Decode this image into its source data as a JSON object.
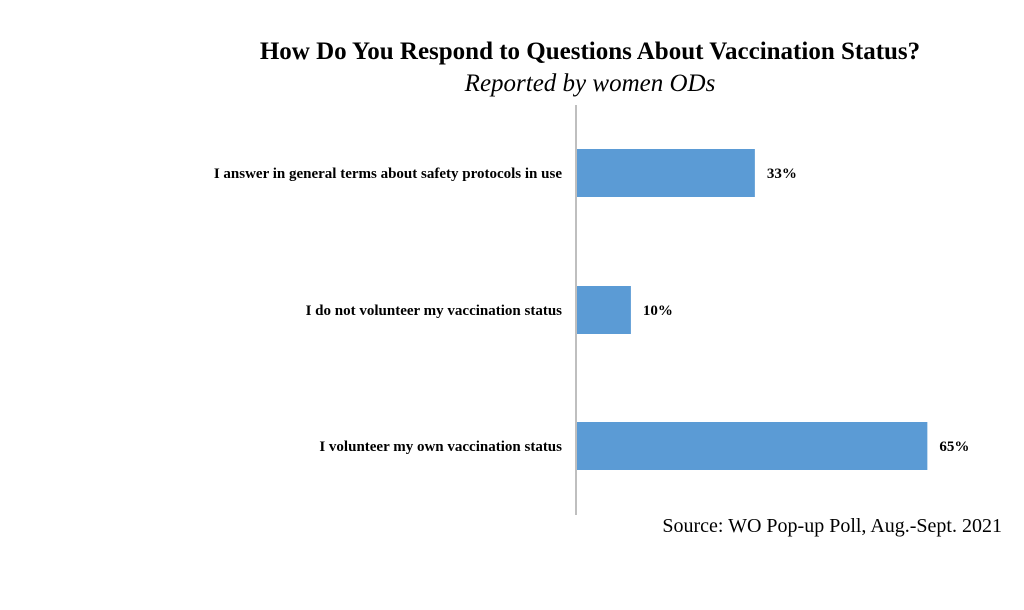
{
  "chart_data": {
    "type": "bar",
    "orientation": "horizontal",
    "title": "How Do You Respond to Questions About Vaccination Status?",
    "subtitle": "Reported by women ODs",
    "categories": [
      "I answer in general terms about safety protocols in use",
      "I do not volunteer my vaccination status",
      "I volunteer my own vaccination status"
    ],
    "values": [
      33,
      10,
      65
    ],
    "value_labels": [
      "33%",
      "10%",
      "65%"
    ],
    "xlim": [
      0,
      100
    ],
    "grid": false,
    "bar_color": "#5b9bd5",
    "axis_color": "#bfbfbf"
  },
  "source": "Source: WO Pop-up Poll, Aug.-Sept. 2021"
}
